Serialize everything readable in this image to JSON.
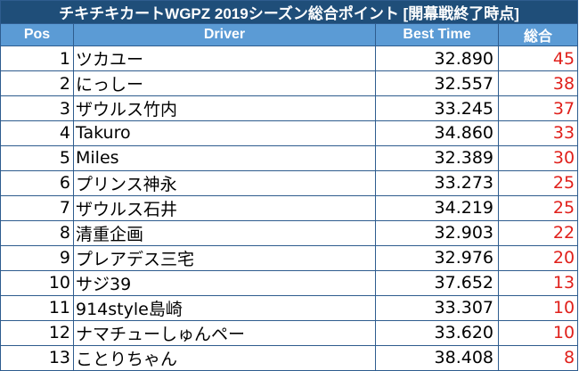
{
  "title": "チキチキカートWGPZ 2019シーズン総合ポイント [開幕戦終了時点]",
  "headers": {
    "pos": "Pos",
    "driver": "Driver",
    "best_time": "Best Time",
    "points": "総合"
  },
  "colors": {
    "title_bg": "#1f4e79",
    "header_bg": "#5b9bd5",
    "border": "#2e5c8e",
    "points_text": "#e0201b"
  },
  "rows": [
    {
      "pos": "1",
      "driver": "ツカユー",
      "best_time": "32.890",
      "points": "45"
    },
    {
      "pos": "2",
      "driver": "にっしー",
      "best_time": "32.557",
      "points": "38"
    },
    {
      "pos": "3",
      "driver": "ザウルス竹内",
      "best_time": "33.245",
      "points": "37"
    },
    {
      "pos": "4",
      "driver": "Takuro",
      "best_time": "34.860",
      "points": "33"
    },
    {
      "pos": "5",
      "driver": "Miles",
      "best_time": "32.389",
      "points": "30"
    },
    {
      "pos": "6",
      "driver": "プリンス神永",
      "best_time": "33.273",
      "points": "25"
    },
    {
      "pos": "7",
      "driver": "ザウルス石井",
      "best_time": "34.219",
      "points": "25"
    },
    {
      "pos": "8",
      "driver": "清重企画",
      "best_time": "32.903",
      "points": "22"
    },
    {
      "pos": "9",
      "driver": "プレアデス三宅",
      "best_time": "32.976",
      "points": "20"
    },
    {
      "pos": "10",
      "driver": "サジ39",
      "best_time": "37.652",
      "points": "13"
    },
    {
      "pos": "11",
      "driver": "914style島崎",
      "best_time": "33.307",
      "points": "10"
    },
    {
      "pos": "12",
      "driver": "ナマチューしゅんペー",
      "best_time": "33.620",
      "points": "10"
    },
    {
      "pos": "13",
      "driver": "ことりちゃん",
      "best_time": "38.408",
      "points": "8"
    }
  ]
}
